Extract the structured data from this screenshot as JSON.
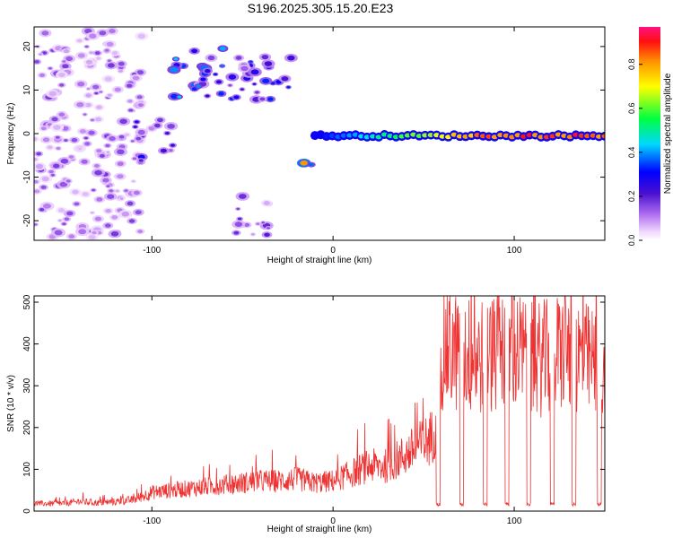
{
  "title": "S196.2025.305.15.20.E23",
  "colorbar_label": "Normalized spectral amplitude",
  "chart_data": [
    {
      "type": "heatmap",
      "title": "S196.2025.305.15.20.E23",
      "xlabel": "Height of straight line (km)",
      "ylabel": "Frequency (Hz)",
      "xlim": [
        -165,
        150
      ],
      "ylim": [
        -24.5,
        24.5
      ],
      "xticks": [
        -100,
        0,
        100
      ],
      "yticks": [
        -20,
        -10,
        0,
        10,
        20
      ],
      "colorbar": {
        "label": "Normalized spectral amplitude",
        "range": [
          0,
          0.97
        ],
        "ticks": [
          0.0,
          0.2,
          0.4,
          0.6,
          0.8
        ]
      },
      "regions": [
        {
          "desc": "diffuse noise",
          "x": [
            -165,
            -105
          ],
          "y": [
            -24,
            24
          ],
          "amplitude": 0.12
        },
        {
          "desc": "rising band",
          "x": [
            -110,
            -88
          ],
          "y": [
            -7,
            4
          ],
          "amplitude": 0.2
        },
        {
          "desc": "upper cluster",
          "x": [
            -88,
            -60
          ],
          "y": [
            8,
            20
          ],
          "amplitude": 0.3
        },
        {
          "desc": "upper cluster",
          "x": [
            -60,
            -22
          ],
          "y": [
            7,
            18
          ],
          "amplitude": 0.25
        },
        {
          "desc": "lower cluster",
          "x": [
            -55,
            -35
          ],
          "y": [
            -24,
            -14
          ],
          "amplitude": 0.15
        },
        {
          "desc": "transition",
          "x": [
            -18,
            -10
          ],
          "y": [
            -8,
            -5
          ],
          "amplitude": 0.7
        },
        {
          "desc": "narrow band near 0 Hz",
          "x": [
            -10,
            150
          ],
          "y": [
            -1.5,
            0.5
          ],
          "amplitude_range": [
            0.3,
            0.95
          ]
        }
      ]
    },
    {
      "type": "line",
      "xlabel": "Height of straight line (km)",
      "ylabel": "SNR (10 * v/v)",
      "xlim": [
        -165,
        150
      ],
      "ylim": [
        0,
        515
      ],
      "xticks": [
        -100,
        0,
        100
      ],
      "yticks": [
        0,
        100,
        200,
        300,
        400,
        500
      ],
      "series": [
        {
          "name": "SNR",
          "color": "#ee3333",
          "x": [
            -165,
            -150,
            -140,
            -130,
            -120,
            -110,
            -100,
            -90,
            -80,
            -70,
            -60,
            -50,
            -40,
            -30,
            -20,
            -10,
            0,
            10,
            20,
            30,
            40,
            50,
            55,
            58,
            60,
            70,
            80,
            90,
            100,
            110,
            120,
            130,
            140,
            150
          ],
          "values": [
            20,
            20,
            25,
            22,
            25,
            30,
            50,
            55,
            60,
            65,
            70,
            75,
            80,
            80,
            85,
            75,
            80,
            100,
            120,
            120,
            150,
            180,
            200,
            280,
            430,
            420,
            410,
            420,
            430,
            400,
            410,
            430,
            400,
            380
          ]
        }
      ],
      "dropouts_x": [
        58,
        71,
        84,
        96,
        108,
        121,
        133,
        147
      ]
    }
  ]
}
